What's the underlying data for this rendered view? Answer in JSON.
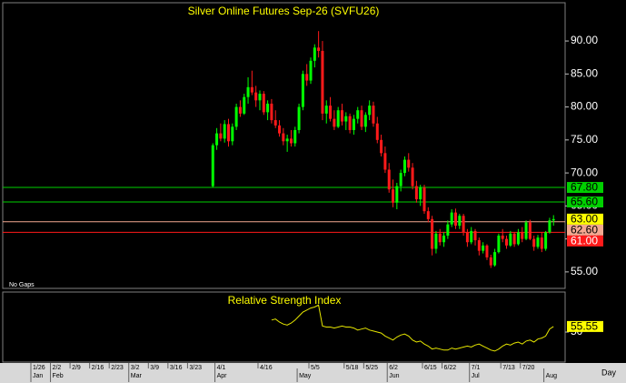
{
  "chart_data": {
    "type": "candlestick",
    "title": "Silver Online Futures Sep-26 (SVFU26)",
    "note": "No Gaps",
    "period": "Day",
    "up_color": "#00ff00",
    "down_color": "#ff1a1a",
    "ylim": [
      52.5,
      95.8
    ],
    "yticks": [
      {
        "value": 55,
        "label": "55.00"
      },
      {
        "value": 60,
        "label": "60.00"
      },
      {
        "value": 65,
        "label": "65.00"
      },
      {
        "value": 70,
        "label": "70.00"
      },
      {
        "value": 75,
        "label": "75.00"
      },
      {
        "value": 80,
        "label": "80.00"
      },
      {
        "value": 85,
        "label": "85.00"
      },
      {
        "value": 90,
        "label": "90.00"
      }
    ],
    "levels": [
      {
        "value": 67.8,
        "label": "67.80",
        "color": "#00d000"
      },
      {
        "value": 65.6,
        "label": "65.60",
        "color": "#00d000"
      },
      {
        "value": 62.6,
        "label": "62.60",
        "color": "#f4a890"
      },
      {
        "value": 61.0,
        "label": "61.00",
        "color": "#ff1a1a"
      }
    ],
    "last_price": {
      "value": 63,
      "label": "63.00",
      "color": "#ffff00"
    },
    "categories": [
      "1/26",
      null,
      null,
      null,
      null,
      "2/2",
      null,
      null,
      null,
      null,
      "2/9",
      null,
      null,
      null,
      null,
      "2/16",
      null,
      null,
      null,
      null,
      "2/23",
      null,
      null,
      null,
      null,
      "3/2",
      null,
      null,
      null,
      null,
      "3/9",
      null,
      null,
      null,
      null,
      "3/16",
      null,
      null,
      null,
      null,
      "3/23",
      null,
      null,
      null,
      null,
      null,
      null,
      "4/1",
      null,
      null,
      null,
      null,
      null,
      null,
      null,
      null,
      null,
      null,
      "4/16",
      null,
      null,
      null,
      null,
      null,
      null,
      null,
      null,
      null,
      null,
      null,
      null,
      "5/5",
      null,
      null,
      null,
      null,
      null,
      null,
      null,
      null,
      "5/18",
      null,
      null,
      null,
      null,
      "5/25",
      null,
      null,
      null,
      null,
      null,
      "6/2",
      null,
      null,
      null,
      null,
      null,
      null,
      null,
      null,
      "6/15",
      null,
      null,
      null,
      null,
      "6/22",
      null,
      null,
      null,
      null,
      null,
      null,
      "7/1",
      null,
      null,
      null,
      null,
      null,
      null,
      null,
      "7/13",
      null,
      null,
      null,
      null,
      "7/20",
      null,
      null,
      null,
      null,
      null,
      null,
      null,
      null
    ],
    "months": [
      "Jan",
      null,
      null,
      null,
      null,
      "Feb",
      null,
      null,
      null,
      null,
      null,
      null,
      null,
      null,
      null,
      null,
      null,
      null,
      null,
      null,
      null,
      null,
      null,
      null,
      null,
      "Mar",
      null,
      null,
      null,
      null,
      null,
      null,
      null,
      null,
      null,
      null,
      null,
      null,
      null,
      null,
      null,
      null,
      null,
      null,
      null,
      null,
      null,
      "Apr",
      null,
      null,
      null,
      null,
      null,
      null,
      null,
      null,
      null,
      null,
      null,
      null,
      null,
      null,
      null,
      null,
      null,
      null,
      null,
      null,
      "May",
      null,
      null,
      null,
      null,
      null,
      null,
      null,
      null,
      null,
      null,
      null,
      null,
      null,
      null,
      null,
      null,
      null,
      null,
      null,
      null,
      null,
      null,
      "Jun",
      null,
      null,
      null,
      null,
      null,
      null,
      null,
      null,
      null,
      null,
      null,
      null,
      null,
      null,
      null,
      null,
      null,
      null,
      null,
      null,
      "Jul",
      null,
      null,
      null,
      null,
      null,
      null,
      null,
      null,
      null,
      null,
      null,
      null,
      null,
      null,
      null,
      null,
      null,
      null,
      "Aug",
      null,
      null
    ],
    "ohlc": [
      null,
      null,
      null,
      null,
      null,
      null,
      null,
      null,
      null,
      null,
      null,
      null,
      null,
      null,
      null,
      null,
      null,
      null,
      null,
      null,
      null,
      null,
      null,
      null,
      null,
      null,
      null,
      null,
      null,
      null,
      null,
      null,
      null,
      null,
      null,
      null,
      null,
      null,
      null,
      null,
      null,
      null,
      null,
      null,
      null,
      null,
      [
        68.0,
        74.5,
        67.8,
        74.2
      ],
      [
        74.2,
        76.8,
        73.5,
        76.0
      ],
      [
        76.0,
        77.5,
        74.8,
        75.2
      ],
      [
        75.2,
        78.0,
        74.6,
        77.4
      ],
      [
        77.4,
        78.2,
        74.0,
        74.8
      ],
      [
        74.8,
        77.5,
        74.2,
        77.0
      ],
      [
        77.0,
        80.5,
        76.5,
        80.0
      ],
      [
        80.0,
        81.0,
        78.5,
        79.0
      ],
      [
        79.0,
        82.0,
        78.8,
        81.5
      ],
      [
        81.5,
        84.5,
        80.5,
        83.0
      ],
      [
        83.0,
        85.5,
        81.8,
        82.2
      ],
      [
        82.2,
        83.2,
        80.0,
        81.0
      ],
      [
        81.0,
        82.5,
        79.5,
        82.0
      ],
      [
        82.0,
        82.4,
        78.8,
        79.2
      ],
      [
        79.2,
        81.0,
        78.0,
        80.5
      ],
      [
        80.5,
        81.2,
        77.5,
        78.0
      ],
      [
        78.0,
        79.5,
        76.8,
        77.2
      ],
      [
        77.2,
        78.0,
        75.5,
        76.0
      ],
      [
        76.0,
        76.8,
        74.2,
        74.8
      ],
      [
        74.8,
        75.8,
        73.2,
        75.2
      ],
      [
        75.2,
        76.5,
        74.0,
        74.5
      ],
      [
        74.5,
        77.0,
        74.0,
        76.5
      ],
      [
        76.5,
        80.5,
        76.0,
        80.0
      ],
      [
        80.0,
        85.5,
        79.5,
        85.0
      ],
      [
        85.0,
        86.5,
        83.2,
        84.0
      ],
      [
        84.0,
        87.5,
        83.5,
        87.0
      ],
      [
        87.0,
        89.5,
        86.0,
        89.0
      ],
      [
        89.0,
        91.5,
        87.5,
        88.5
      ],
      [
        88.5,
        90.0,
        78.0,
        79.0
      ],
      [
        79.0,
        81.0,
        77.5,
        80.2
      ],
      [
        80.2,
        81.5,
        77.8,
        78.2
      ],
      [
        78.2,
        79.5,
        76.5,
        77.0
      ],
      [
        77.0,
        80.0,
        76.8,
        79.5
      ],
      [
        79.5,
        80.5,
        77.2,
        77.8
      ],
      [
        77.8,
        79.2,
        76.5,
        78.6
      ],
      [
        78.6,
        79.0,
        76.0,
        76.5
      ],
      [
        76.5,
        78.8,
        75.8,
        78.2
      ],
      [
        78.2,
        80.0,
        77.5,
        79.5
      ],
      [
        79.5,
        80.2,
        76.5,
        77.0
      ],
      [
        77.0,
        79.2,
        76.2,
        78.8
      ],
      [
        78.8,
        81.0,
        78.0,
        80.2
      ],
      [
        80.2,
        80.8,
        77.0,
        77.5
      ],
      [
        77.5,
        78.5,
        74.5,
        75.0
      ],
      [
        75.0,
        75.8,
        72.5,
        73.0
      ],
      [
        73.0,
        74.0,
        70.0,
        70.5
      ],
      [
        70.5,
        71.5,
        67.0,
        67.5
      ],
      [
        67.5,
        69.0,
        64.8,
        65.5
      ],
      [
        65.5,
        68.5,
        64.5,
        68.0
      ],
      [
        68.0,
        70.5,
        67.2,
        70.0
      ],
      [
        70.0,
        72.5,
        69.5,
        72.0
      ],
      [
        72.0,
        73.0,
        70.2,
        70.8
      ],
      [
        70.8,
        71.5,
        67.5,
        68.0
      ],
      [
        68.0,
        68.8,
        65.5,
        66.0
      ],
      [
        66.0,
        68.2,
        65.0,
        67.8
      ],
      [
        67.8,
        68.2,
        63.8,
        64.2
      ],
      [
        64.2,
        64.8,
        62.5,
        63.0
      ],
      [
        63.0,
        63.5,
        57.5,
        58.5
      ],
      [
        58.5,
        61.2,
        57.8,
        60.8
      ],
      [
        60.8,
        61.5,
        59.0,
        59.5
      ],
      [
        59.5,
        61.0,
        58.8,
        60.5
      ],
      [
        60.5,
        62.8,
        60.0,
        62.2
      ],
      [
        62.2,
        64.5,
        61.8,
        64.0
      ],
      [
        64.0,
        64.6,
        61.5,
        62.0
      ],
      [
        62.0,
        63.8,
        61.5,
        63.5
      ],
      [
        63.5,
        63.8,
        60.5,
        61.0
      ],
      [
        61.0,
        61.5,
        58.8,
        59.5
      ],
      [
        59.5,
        61.8,
        59.2,
        61.2
      ],
      [
        61.2,
        61.5,
        59.0,
        59.8
      ],
      [
        59.8,
        60.2,
        57.5,
        58.2
      ],
      [
        58.2,
        59.5,
        57.8,
        59.0
      ],
      [
        59.0,
        59.2,
        56.8,
        57.2
      ],
      [
        57.2,
        57.6,
        55.6,
        56.0
      ],
      [
        56.0,
        58.5,
        55.8,
        58.0
      ],
      [
        58.0,
        60.8,
        57.8,
        60.5
      ],
      [
        60.5,
        61.5,
        59.5,
        60.0
      ],
      [
        60.0,
        60.5,
        58.5,
        59.0
      ],
      [
        59.0,
        61.2,
        58.8,
        60.8
      ],
      [
        60.8,
        61.0,
        58.8,
        59.2
      ],
      [
        59.2,
        61.5,
        59.0,
        61.0
      ],
      [
        61.0,
        61.8,
        59.5,
        60.0
      ],
      [
        60.0,
        62.8,
        59.8,
        62.5
      ],
      [
        62.5,
        62.9,
        59.8,
        60.0
      ],
      [
        60.0,
        60.5,
        58.2,
        58.8
      ],
      [
        58.8,
        60.6,
        58.5,
        60.2
      ],
      [
        60.2,
        61.0,
        58.0,
        58.5
      ],
      [
        58.5,
        61.2,
        58.2,
        61.0
      ],
      [
        61.0,
        63.2,
        60.8,
        62.8
      ],
      [
        62.8,
        63.6,
        62.0,
        63.0
      ]
    ],
    "rsi": {
      "title": "Relative Strength Index",
      "color": "#e6e600",
      "ylim": [
        20,
        90
      ],
      "yticks": [
        50
      ],
      "values": [
        null,
        null,
        null,
        null,
        null,
        null,
        null,
        null,
        null,
        null,
        null,
        null,
        null,
        null,
        null,
        null,
        null,
        null,
        null,
        null,
        null,
        null,
        null,
        null,
        null,
        null,
        null,
        null,
        null,
        null,
        null,
        null,
        null,
        null,
        null,
        null,
        null,
        null,
        null,
        null,
        null,
        null,
        null,
        null,
        null,
        null,
        null,
        null,
        null,
        null,
        null,
        null,
        null,
        null,
        null,
        null,
        null,
        null,
        null,
        null,
        null,
        62,
        63,
        60,
        58,
        57,
        59,
        62,
        66,
        70,
        72,
        74,
        75,
        77,
        56,
        55,
        55,
        54,
        55,
        56,
        55,
        55,
        54,
        52,
        53,
        54,
        52,
        51,
        50,
        49,
        46,
        44,
        42,
        45,
        47,
        48,
        46,
        42,
        40,
        41,
        38,
        36,
        33,
        34,
        33,
        32,
        32,
        34,
        33,
        34,
        35,
        36,
        35,
        37,
        38,
        36,
        34,
        32,
        31,
        33,
        36,
        38,
        37,
        39,
        40,
        38,
        41,
        42,
        40,
        43,
        44,
        46,
        53,
        55.55
      ]
    }
  }
}
